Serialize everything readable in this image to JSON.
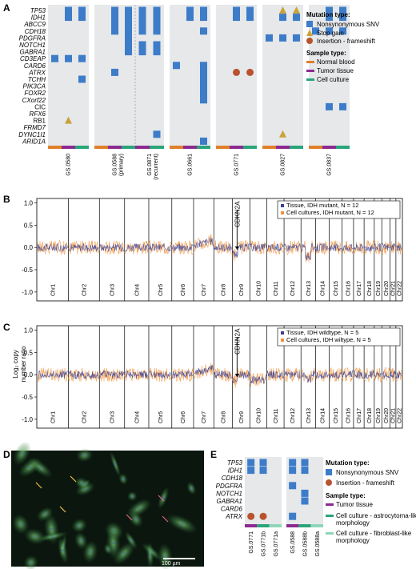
{
  "panel_labels": {
    "A": "A",
    "B": "B",
    "C": "C",
    "D": "D",
    "E": "E"
  },
  "colors": {
    "snv": "#3d7cc9",
    "stop": "#c9a23a",
    "frameshift": "#b9532f",
    "normal": "#e07f2a",
    "tumor": "#8c2a91",
    "culture": "#2aa57a",
    "culture_fibro": "#8fd6b8",
    "panel_bg": "#e6e8ea",
    "tissue_line": "#3a3e8f",
    "culture_line": "#f0923a"
  },
  "panel_a": {
    "genes": [
      {
        "name": "TP53",
        "italic": true
      },
      {
        "name": "IDH1",
        "italic": true
      },
      {
        "name": "ABCC9",
        "italic": true
      },
      {
        "name": "CDH18",
        "italic": true
      },
      {
        "name": "PDGFRA",
        "italic": true
      },
      {
        "name": "NOTCH1",
        "italic": true
      },
      {
        "name": "GABRA1",
        "italic": true
      },
      {
        "name": "CD3EAP",
        "italic": true
      },
      {
        "name": "CARD6",
        "italic": true
      },
      {
        "name": "ATRX",
        "italic": true
      },
      {
        "name": "TCHH",
        "italic": true
      },
      {
        "name": "PIK3CA",
        "italic": true
      },
      {
        "name": "FOXR2",
        "italic": true
      },
      {
        "name": "CXorf22",
        "italic": true
      },
      {
        "name": "CIC",
        "italic": false
      },
      {
        "name": "RFX6",
        "italic": true
      },
      {
        "name": "RB1",
        "italic": false
      },
      {
        "name": "FRMD7",
        "italic": true
      },
      {
        "name": "DYNC1I1",
        "italic": true
      },
      {
        "name": "ARID1A",
        "italic": true
      }
    ],
    "samples": [
      {
        "label": "GS.0580",
        "cols": [
          "normal",
          "tumor",
          "culture"
        ]
      },
      {
        "label": "GS.0588\n(primary)",
        "cols": [
          "normal",
          "tumor",
          "culture"
        ]
      },
      {
        "label": "GS.0871\n(recurrent)",
        "cols": [
          "tumor",
          "culture"
        ]
      },
      {
        "label": "GS.0661",
        "cols": [
          "normal",
          "tumor",
          "culture"
        ]
      },
      {
        "label": "GS.0771",
        "cols": [
          "normal",
          "tumor",
          "culture"
        ]
      },
      {
        "label": "GS.0827",
        "cols": [
          "normal",
          "tumor",
          "culture"
        ]
      },
      {
        "label": "GS.0837",
        "cols": [
          "normal",
          "tumor",
          "culture"
        ]
      }
    ],
    "mutations": [
      {
        "s": 0,
        "c": 1,
        "g": 0,
        "t": "snv"
      },
      {
        "s": 0,
        "c": 2,
        "g": 0,
        "t": "snv"
      },
      {
        "s": 0,
        "c": 1,
        "g": 1,
        "t": "snv"
      },
      {
        "s": 0,
        "c": 2,
        "g": 1,
        "t": "snv"
      },
      {
        "s": 0,
        "c": 0,
        "g": 7,
        "t": "snv"
      },
      {
        "s": 0,
        "c": 1,
        "g": 7,
        "t": "snv"
      },
      {
        "s": 0,
        "c": 2,
        "g": 7,
        "t": "snv"
      },
      {
        "s": 0,
        "c": 2,
        "g": 10,
        "t": "snv"
      },
      {
        "s": 0,
        "c": 1,
        "g": 16,
        "t": "stop"
      },
      {
        "s": 1,
        "c": 1,
        "g": 0,
        "t": "snv"
      },
      {
        "s": 1,
        "c": 2,
        "g": 0,
        "t": "snv"
      },
      {
        "s": 1,
        "c": 1,
        "g": 1,
        "t": "snv"
      },
      {
        "s": 1,
        "c": 2,
        "g": 1,
        "t": "snv"
      },
      {
        "s": 1,
        "c": 1,
        "g": 2,
        "t": "snv"
      },
      {
        "s": 1,
        "c": 2,
        "g": 2,
        "t": "snv"
      },
      {
        "s": 1,
        "c": 1,
        "g": 3,
        "t": "snv"
      },
      {
        "s": 1,
        "c": 2,
        "g": 3,
        "t": "snv"
      },
      {
        "s": 1,
        "c": 2,
        "g": 4,
        "t": "snv"
      },
      {
        "s": 1,
        "c": 2,
        "g": 5,
        "t": "snv"
      },
      {
        "s": 1,
        "c": 2,
        "g": 6,
        "t": "snv"
      },
      {
        "s": 1,
        "c": 1,
        "g": 9,
        "t": "snv"
      },
      {
        "s": 2,
        "c": 0,
        "g": 0,
        "t": "snv"
      },
      {
        "s": 2,
        "c": 1,
        "g": 0,
        "t": "snv"
      },
      {
        "s": 2,
        "c": 0,
        "g": 1,
        "t": "snv"
      },
      {
        "s": 2,
        "c": 1,
        "g": 1,
        "t": "snv"
      },
      {
        "s": 2,
        "c": 0,
        "g": 2,
        "t": "snv"
      },
      {
        "s": 2,
        "c": 1,
        "g": 2,
        "t": "snv"
      },
      {
        "s": 2,
        "c": 0,
        "g": 3,
        "t": "snv"
      },
      {
        "s": 2,
        "c": 1,
        "g": 3,
        "t": "snv"
      },
      {
        "s": 2,
        "c": 0,
        "g": 5,
        "t": "snv"
      },
      {
        "s": 2,
        "c": 1,
        "g": 5,
        "t": "snv"
      },
      {
        "s": 2,
        "c": 0,
        "g": 6,
        "t": "snv"
      },
      {
        "s": 2,
        "c": 1,
        "g": 6,
        "t": "snv"
      },
      {
        "s": 2,
        "c": 1,
        "g": 18,
        "t": "snv"
      },
      {
        "s": 3,
        "c": 1,
        "g": 0,
        "t": "snv"
      },
      {
        "s": 3,
        "c": 2,
        "g": 0,
        "t": "snv"
      },
      {
        "s": 3,
        "c": 1,
        "g": 1,
        "t": "snv"
      },
      {
        "s": 3,
        "c": 2,
        "g": 1,
        "t": "snv"
      },
      {
        "s": 3,
        "c": 2,
        "g": 3,
        "t": "snv"
      },
      {
        "s": 3,
        "c": 0,
        "g": 8,
        "t": "snv"
      },
      {
        "s": 3,
        "c": 2,
        "g": 8,
        "t": "snv"
      },
      {
        "s": 3,
        "c": 2,
        "g": 9,
        "t": "snv"
      },
      {
        "s": 3,
        "c": 2,
        "g": 10,
        "t": "snv"
      },
      {
        "s": 3,
        "c": 2,
        "g": 11,
        "t": "snv"
      },
      {
        "s": 3,
        "c": 2,
        "g": 12,
        "t": "snv"
      },
      {
        "s": 3,
        "c": 2,
        "g": 13,
        "t": "snv"
      },
      {
        "s": 3,
        "c": 2,
        "g": 19,
        "t": "snv"
      },
      {
        "s": 4,
        "c": 1,
        "g": 0,
        "t": "snv"
      },
      {
        "s": 4,
        "c": 2,
        "g": 0,
        "t": "snv"
      },
      {
        "s": 4,
        "c": 1,
        "g": 1,
        "t": "snv"
      },
      {
        "s": 4,
        "c": 2,
        "g": 1,
        "t": "snv"
      },
      {
        "s": 4,
        "c": 1,
        "g": 9,
        "t": "frameshift"
      },
      {
        "s": 4,
        "c": 2,
        "g": 9,
        "t": "frameshift"
      },
      {
        "s": 5,
        "c": 1,
        "g": 0,
        "t": "stop"
      },
      {
        "s": 5,
        "c": 2,
        "g": 0,
        "t": "stop"
      },
      {
        "s": 5,
        "c": 1,
        "g": 1,
        "t": "snv"
      },
      {
        "s": 5,
        "c": 2,
        "g": 1,
        "t": "snv"
      },
      {
        "s": 5,
        "c": 0,
        "g": 4,
        "t": "snv"
      },
      {
        "s": 5,
        "c": 1,
        "g": 4,
        "t": "snv"
      },
      {
        "s": 5,
        "c": 2,
        "g": 4,
        "t": "snv"
      },
      {
        "s": 5,
        "c": 1,
        "g": 18,
        "t": "stop"
      },
      {
        "s": 6,
        "c": 1,
        "g": 0,
        "t": "snv"
      },
      {
        "s": 6,
        "c": 2,
        "g": 0,
        "t": "snv"
      },
      {
        "s": 6,
        "c": 1,
        "g": 1,
        "t": "snv"
      },
      {
        "s": 6,
        "c": 2,
        "g": 1,
        "t": "snv"
      },
      {
        "s": 6,
        "c": 0,
        "g": 3,
        "t": "snv"
      },
      {
        "s": 6,
        "c": 1,
        "g": 3,
        "t": "snv"
      },
      {
        "s": 6,
        "c": 2,
        "g": 3,
        "t": "snv"
      },
      {
        "s": 6,
        "c": 1,
        "g": 14,
        "t": "snv"
      },
      {
        "s": 6,
        "c": 2,
        "g": 14,
        "t": "snv"
      }
    ],
    "legend": {
      "mutation_title": "Mutation type:",
      "snv": "Nonsynonymous SNV",
      "stop": "Stop gain",
      "frameshift": "Insertion - frameshift",
      "sample_title": "Sample type:",
      "normal": "Normal blood",
      "tumor": "Tumor tissue",
      "culture": "Cell culture"
    }
  },
  "cnv": {
    "ylabel": "Log₂ copy\nnumber ratio",
    "yticks": [
      "1.0",
      "0.5",
      "0.0",
      "-0.5",
      "-1.0"
    ],
    "chromosomes": [
      "Chr1",
      "Chr2",
      "Chr3",
      "Chr4",
      "Chr5",
      "Chr6",
      "Chr7",
      "Chr8",
      "Chr9",
      "Chr10",
      "Chr11",
      "Chr12",
      "Chr13",
      "Chr14",
      "Chr15",
      "Chr16",
      "Chr17",
      "Chr18",
      "Chr19",
      "Chr20",
      "Chr21",
      "Chr22"
    ],
    "annotation": "CDKN2A",
    "panel_b": {
      "legend": [
        "Tissue, IDH mutant, N = 12",
        "Cell cultures, IDH mutant, N = 12"
      ]
    },
    "panel_c": {
      "legend": [
        "Tissue, IDH wildtype, N = 5",
        "Cell cultures, IDH wiltype, N = 5"
      ]
    }
  },
  "panel_d": {
    "scale_bar": "100 µm"
  },
  "panel_e": {
    "genes": [
      "TP53",
      "IDH1",
      "CDH18",
      "PDGFRA",
      "NOTCH1",
      "GABRA1",
      "CARD6",
      "ATRX"
    ],
    "samples_left": [
      "GS.0771",
      "GS.0771b",
      "GS.0771a"
    ],
    "samples_right": [
      "GS.0588",
      "GS.0588b",
      "GS.0588a"
    ],
    "legend": {
      "mutation_title": "Mutation type:",
      "snv": "Nonsynonymous SNV",
      "frameshift": "Insertion - frameshift",
      "sample_title": "Sample type:",
      "tumor": "Tumor tissue",
      "astro": "Cell culture - astrocytoma-like\nmorphology",
      "fibro": "Cell culture - fibroblast-like\nmorphology"
    }
  }
}
